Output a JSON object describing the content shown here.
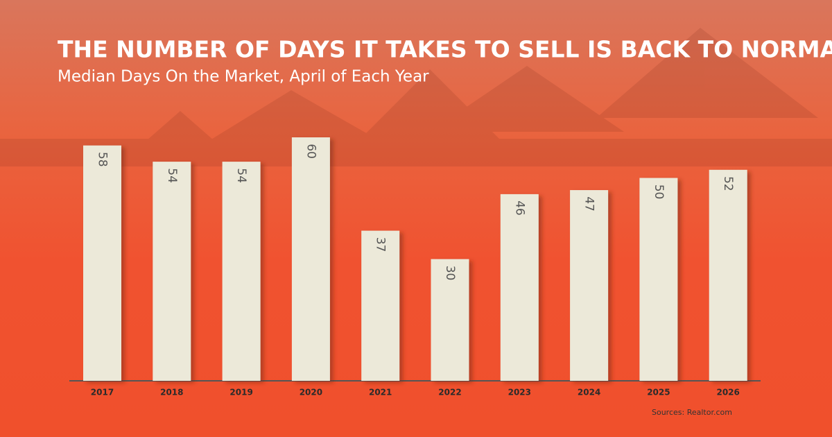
{
  "chart_data": {
    "type": "bar",
    "title": "THE NUMBER OF DAYS IT TAKES TO SELL IS BACK TO NORMAL",
    "subtitle": "Median Days On the Market, April of Each Year",
    "categories": [
      "2017",
      "2018",
      "2019",
      "2020",
      "2021",
      "2022",
      "2023",
      "2024",
      "2025",
      "2026"
    ],
    "values": [
      58,
      54,
      54,
      60,
      37,
      30,
      46,
      47,
      50,
      52
    ],
    "color": "#ece9d9",
    "source": "Sources: Realtor.com"
  }
}
